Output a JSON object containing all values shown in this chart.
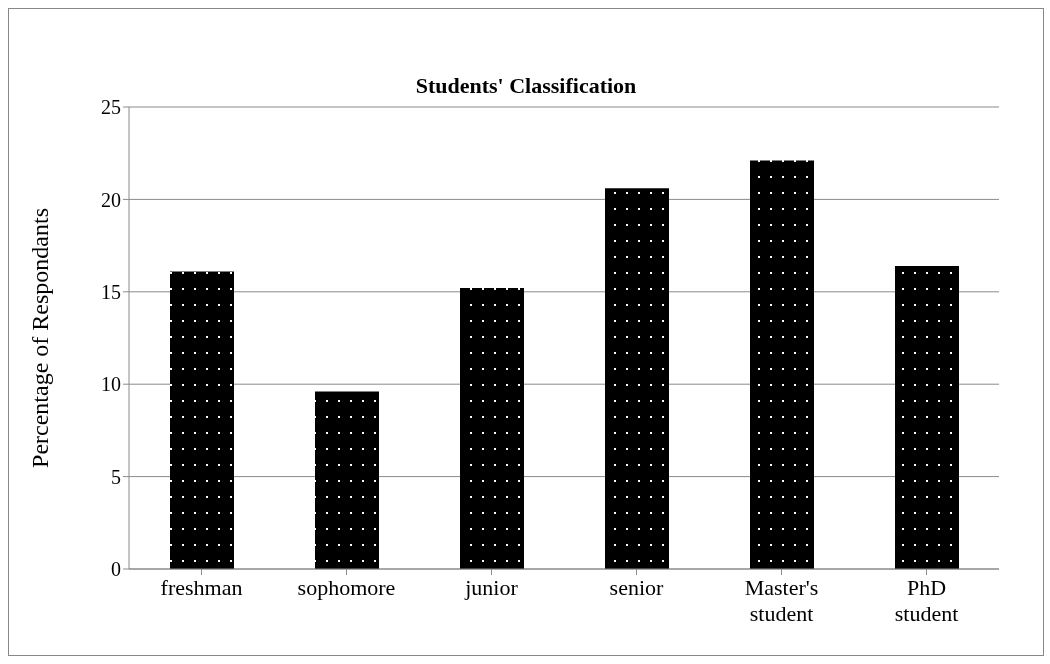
{
  "chart_data": {
    "type": "bar",
    "title": "Students' Classification",
    "ylabel": "Percentage of Respondants",
    "categories": [
      "freshman",
      "sophomore",
      "junior",
      "senior",
      "Master's student",
      "PhD student"
    ],
    "values": [
      16.1,
      9.6,
      15.2,
      20.6,
      22.1,
      16.4
    ],
    "color": "#000000",
    "ylim": [
      0,
      25
    ],
    "yticks": [
      0,
      5,
      10,
      15,
      20,
      25
    ],
    "grid": "y",
    "legend": false
  }
}
